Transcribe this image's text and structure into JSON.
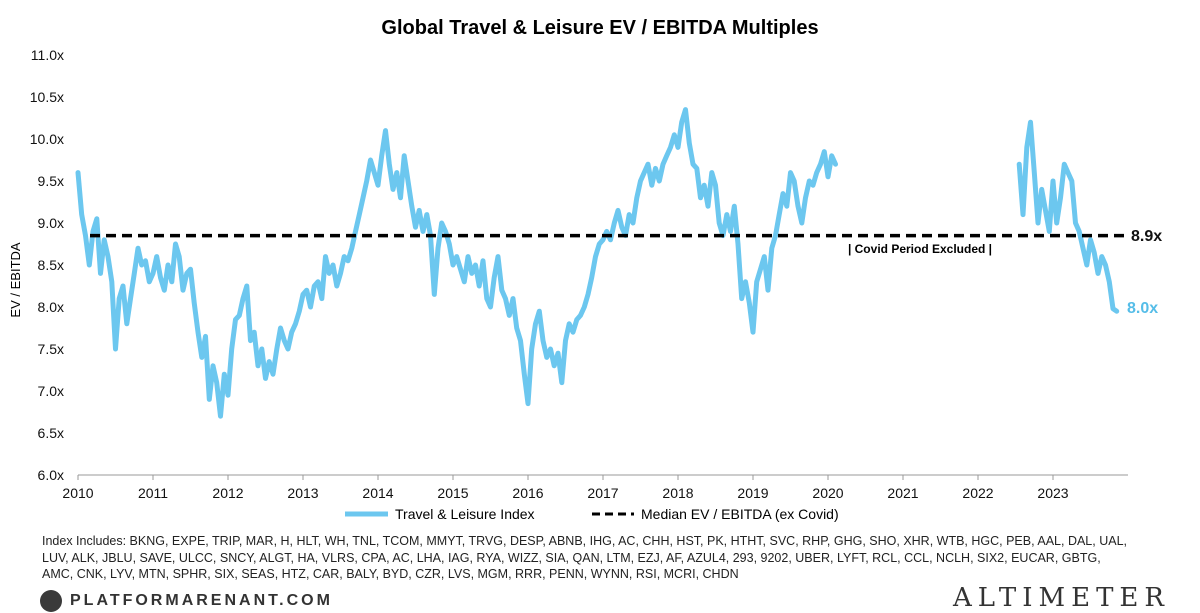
{
  "chart_data": {
    "type": "line",
    "title": "Global Travel & Leisure EV / EBITDA Multiples",
    "ylabel": "EV / EBITDA",
    "xlabel": "",
    "ylim": [
      6.0,
      11.0
    ],
    "xlim": [
      2010,
      2024.0
    ],
    "yticks": [
      6.0,
      6.5,
      7.0,
      7.5,
      8.0,
      8.5,
      9.0,
      9.5,
      10.0,
      10.5,
      11.0
    ],
    "ytick_labels": [
      "6.0x",
      "6.5x",
      "7.0x",
      "7.5x",
      "8.0x",
      "8.5x",
      "9.0x",
      "9.5x",
      "10.0x",
      "10.5x",
      "11.0x"
    ],
    "xticks": [
      2010,
      2011,
      2012,
      2013,
      2014,
      2015,
      2016,
      2017,
      2018,
      2019,
      2020,
      2021,
      2022,
      2023
    ],
    "xtick_labels": [
      "2010",
      "2011",
      "2012",
      "2013",
      "2014",
      "2015",
      "2016",
      "2017",
      "2018",
      "2019",
      "2020",
      "2021",
      "2022",
      "2023"
    ],
    "series": [
      {
        "name": "Travel & Leisure Index",
        "color": "#6cc7ef",
        "segments": [
          {
            "x": [
              2010.0,
              2010.05,
              2010.1,
              2010.15,
              2010.2,
              2010.25,
              2010.3,
              2010.35,
              2010.4,
              2010.45,
              2010.5,
              2010.55,
              2010.6,
              2010.65,
              2010.7,
              2010.75,
              2010.8,
              2010.85,
              2010.9,
              2010.95,
              2011.0,
              2011.05,
              2011.1,
              2011.15,
              2011.2,
              2011.25,
              2011.3,
              2011.35,
              2011.4,
              2011.45,
              2011.5,
              2011.55,
              2011.6,
              2011.65,
              2011.7,
              2011.75,
              2011.8,
              2011.85,
              2011.9,
              2011.95,
              2012.0,
              2012.05,
              2012.1,
              2012.15,
              2012.2,
              2012.25,
              2012.3,
              2012.35,
              2012.4,
              2012.45,
              2012.5,
              2012.55,
              2012.6,
              2012.65,
              2012.7,
              2012.75,
              2012.8,
              2012.85,
              2012.9,
              2012.95,
              2013.0,
              2013.05,
              2013.1,
              2013.15,
              2013.2,
              2013.25,
              2013.3,
              2013.35,
              2013.4,
              2013.45,
              2013.5,
              2013.55,
              2013.6,
              2013.65,
              2013.7,
              2013.75,
              2013.8,
              2013.85,
              2013.9,
              2013.95,
              2014.0,
              2014.05,
              2014.1,
              2014.15,
              2014.2,
              2014.25,
              2014.3,
              2014.35,
              2014.4,
              2014.45,
              2014.5,
              2014.55,
              2014.6,
              2014.65,
              2014.7,
              2014.75,
              2014.8,
              2014.85,
              2014.9,
              2014.95,
              2015.0,
              2015.05,
              2015.1,
              2015.15,
              2015.2,
              2015.25,
              2015.3,
              2015.35,
              2015.4,
              2015.45,
              2015.5,
              2015.55,
              2015.6,
              2015.65,
              2015.7,
              2015.75,
              2015.8,
              2015.85,
              2015.9,
              2015.95,
              2016.0,
              2016.05,
              2016.1,
              2016.15,
              2016.2,
              2016.25,
              2016.3,
              2016.35,
              2016.4,
              2016.45,
              2016.5,
              2016.55,
              2016.6,
              2016.65,
              2016.7,
              2016.75,
              2016.8,
              2016.85,
              2016.9,
              2016.95,
              2017.0,
              2017.05,
              2017.1,
              2017.15,
              2017.2,
              2017.25,
              2017.3,
              2017.35,
              2017.4,
              2017.45,
              2017.5,
              2017.55,
              2017.6,
              2017.65,
              2017.7,
              2017.75,
              2017.8,
              2017.85,
              2017.9,
              2017.95,
              2018.0,
              2018.05,
              2018.1,
              2018.15,
              2018.2,
              2018.25,
              2018.3,
              2018.35,
              2018.4,
              2018.45,
              2018.5,
              2018.55,
              2018.6,
              2018.65,
              2018.7,
              2018.75,
              2018.8,
              2018.85,
              2018.9,
              2018.95,
              2019.0,
              2019.05,
              2019.1,
              2019.15,
              2019.2,
              2019.25,
              2019.3,
              2019.35,
              2019.4,
              2019.45,
              2019.5,
              2019.55,
              2019.6,
              2019.65,
              2019.7,
              2019.75,
              2019.8,
              2019.85,
              2019.9,
              2019.95,
              2020.0,
              2020.05,
              2020.1
            ],
            "y": [
              9.6,
              9.1,
              8.85,
              8.5,
              8.9,
              9.05,
              8.4,
              8.8,
              8.6,
              8.3,
              7.5,
              8.1,
              8.25,
              7.8,
              8.1,
              8.4,
              8.7,
              8.5,
              8.55,
              8.3,
              8.4,
              8.6,
              8.35,
              8.2,
              8.5,
              8.3,
              8.75,
              8.6,
              8.2,
              8.4,
              8.45,
              8.05,
              7.7,
              7.4,
              7.65,
              6.9,
              7.3,
              7.1,
              6.7,
              7.2,
              6.95,
              7.5,
              7.85,
              7.9,
              8.1,
              8.25,
              7.6,
              7.7,
              7.3,
              7.5,
              7.15,
              7.35,
              7.2,
              7.5,
              7.75,
              7.6,
              7.5,
              7.7,
              7.8,
              7.95,
              8.15,
              8.2,
              8.0,
              8.25,
              8.3,
              8.1,
              8.6,
              8.4,
              8.5,
              8.25,
              8.4,
              8.6,
              8.55,
              8.7,
              8.9,
              9.1,
              9.3,
              9.5,
              9.75,
              9.6,
              9.45,
              9.8,
              10.1,
              9.7,
              9.4,
              9.6,
              9.3,
              9.8,
              9.5,
              9.2,
              8.95,
              9.15,
              8.9,
              9.1,
              8.85,
              8.15,
              8.7,
              9.0,
              8.9,
              8.75,
              8.5,
              8.6,
              8.45,
              8.3,
              8.6,
              8.4,
              8.5,
              8.25,
              8.55,
              8.1,
              8.0,
              8.35,
              8.6,
              8.2,
              8.1,
              7.9,
              8.1,
              7.75,
              7.6,
              7.2,
              6.85,
              7.5,
              7.8,
              7.95,
              7.6,
              7.4,
              7.5,
              7.3,
              7.45,
              7.1,
              7.6,
              7.8,
              7.7,
              7.85,
              7.9,
              8.0,
              8.15,
              8.35,
              8.6,
              8.75,
              8.8,
              8.9,
              8.8,
              9.0,
              9.15,
              8.95,
              8.85,
              9.1,
              9.0,
              9.3,
              9.5,
              9.6,
              9.7,
              9.45,
              9.65,
              9.5,
              9.7,
              9.8,
              9.9,
              10.05,
              9.9,
              10.2,
              10.35,
              9.95,
              9.7,
              9.65,
              9.3,
              9.45,
              9.2,
              9.6,
              9.45,
              9.0,
              8.85,
              9.1,
              8.9,
              9.2,
              8.75,
              8.1,
              8.3,
              8.05,
              7.7,
              8.3,
              8.45,
              8.6,
              8.2,
              8.7,
              8.85,
              9.1,
              9.35,
              9.2,
              9.6,
              9.5,
              9.2,
              9.0,
              9.3,
              9.5,
              9.45,
              9.6,
              9.7,
              9.85,
              9.55,
              9.8,
              9.7
            ]
          },
          {
            "x": [
              2022.55,
              2022.6,
              2022.65,
              2022.7,
              2022.75,
              2022.8,
              2022.85,
              2022.9,
              2022.95,
              2023.0,
              2023.05,
              2023.1,
              2023.15,
              2023.2,
              2023.25,
              2023.3,
              2023.35,
              2023.4,
              2023.45,
              2023.5,
              2023.55,
              2023.6,
              2023.65,
              2023.7,
              2023.75,
              2023.8,
              2023.85
            ],
            "y": [
              9.7,
              9.1,
              9.9,
              10.2,
              9.6,
              9.0,
              9.4,
              9.15,
              8.9,
              9.5,
              9.0,
              9.3,
              9.7,
              9.6,
              9.5,
              9.0,
              8.9,
              8.7,
              8.5,
              8.8,
              8.65,
              8.4,
              8.6,
              8.5,
              8.3,
              7.98,
              7.95
            ]
          }
        ],
        "end_label": "8.0x"
      },
      {
        "name": "Median EV / EBITDA (ex Covid)",
        "color": "#000000",
        "style": "dashed",
        "value": 8.85,
        "end_label": "8.9x"
      }
    ],
    "annotations": [
      "| Covid Period Excluded |"
    ]
  },
  "footnote": "Index Includes: BKNG, EXPE, TRIP, MAR, H, HLT, WH, TNL, TCOM, MMYT, TRVG, DESP, ABNB, IHG, AC, CHH, HST, PK, HTHT, SVC, RHP, GHG, SHO, XHR, WTB, HGC, PEB, AAL, DAL, UAL, LUV, ALK, JBLU, SAVE, ULCC, SNCY, ALGT, HA, VLRS, CPA, AC, LHA, IAG, RYA, WIZZ, SIA, QAN, LTM, EZJ, AF, AZUL4, 293, 9202, UBER, LYFT, RCL, CCL, NCLH, SIX2, EUCAR, GBTG, AMC, CNK, LYV, MTN, SPHR, SIX, SEAS, HTZ, CAR, BALY, BYD, CZR, LVS, MGM, RRR, PENN, WYNN, RSI, MCRI, CHDN",
  "branding": {
    "left": "PLATFORMARENANT.COM",
    "right": "ALTIMETER"
  }
}
